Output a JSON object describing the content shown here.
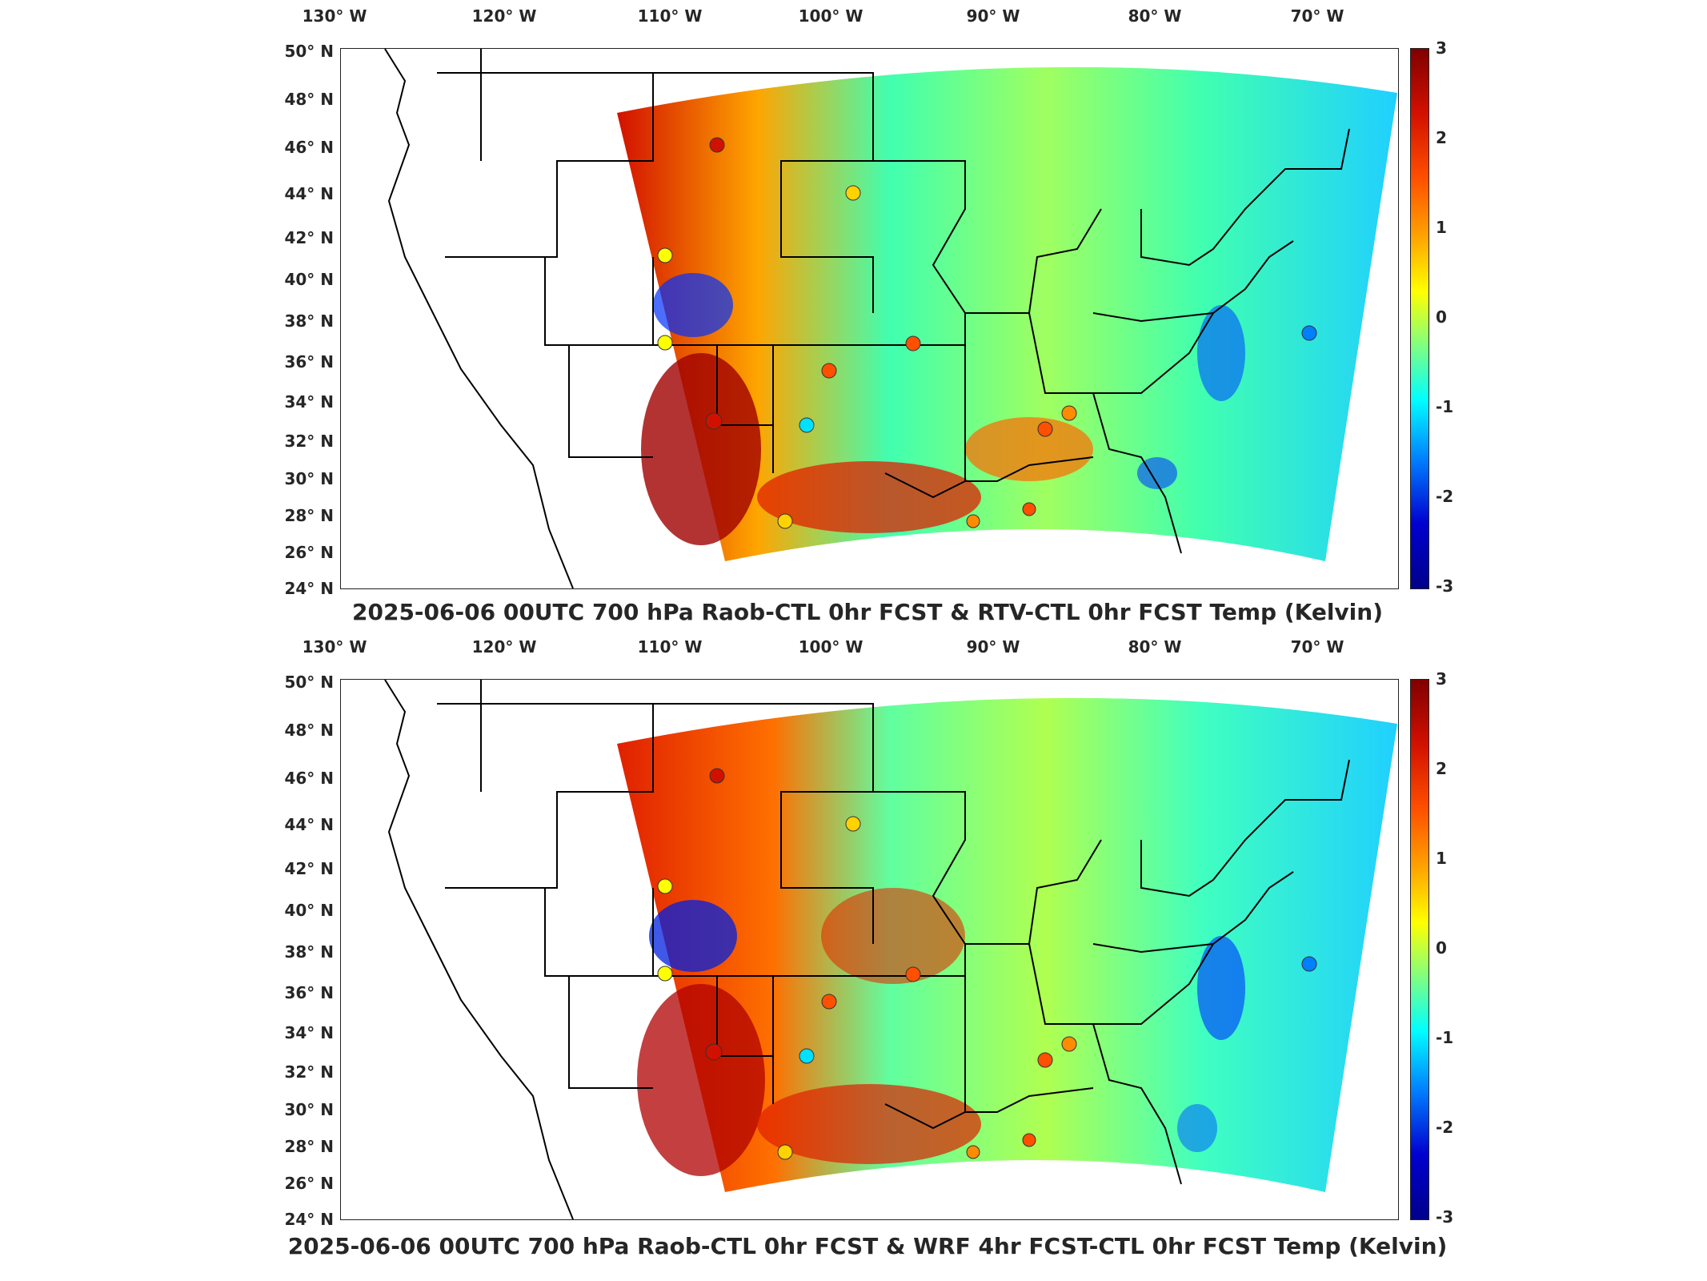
{
  "longitude_labels": [
    "130° W",
    "120° W",
    "110° W",
    "100° W",
    "90° W",
    "80° W",
    "70° W"
  ],
  "latitude_labels": [
    "50° N",
    "48° N",
    "46° N",
    "44° N",
    "42° N",
    "40° N",
    "38° N",
    "36° N",
    "34° N",
    "32° N",
    "30° N",
    "28° N",
    "26° N",
    "24° N"
  ],
  "colorbar": {
    "ticks": [
      "3",
      "2",
      "1",
      "0",
      "-1",
      "-2",
      "-3"
    ],
    "min": -3,
    "max": 3,
    "colormap": "jet"
  },
  "panels": [
    {
      "title": "2025-06-06 00UTC 700 hPa Raob-CTL 0hr FCST & RTV-CTL 0hr FCST Temp (Kelvin)"
    },
    {
      "title": "2025-06-06 00UTC 700 hPa Raob-CTL 0hr FCST & WRF 4hr FCST-CTL 0hr FCST Temp (Kelvin)"
    }
  ],
  "colors": {
    "warm": "#d21000",
    "cool": "#00c8ff",
    "neutral": "#40ffb0",
    "border": "#000000"
  }
}
